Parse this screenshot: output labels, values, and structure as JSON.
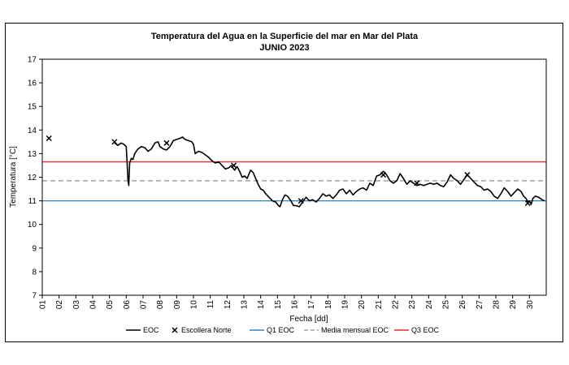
{
  "chart_data": {
    "type": "line",
    "title": "Temperatura del Agua en la Superficie del mar en Mar del Plata",
    "subtitle": "JUNIO 2023",
    "xlabel": "Fecha [dd]",
    "ylabel": "Temperatura [°C]",
    "ylim": [
      7,
      17
    ],
    "yticks": [
      "7",
      "8",
      "9",
      "10",
      "11",
      "12",
      "13",
      "14",
      "15",
      "16",
      "17"
    ],
    "xticks": [
      "01",
      "02",
      "03",
      "04",
      "05",
      "06",
      "07",
      "08",
      "09",
      "10",
      "11",
      "12",
      "13",
      "14",
      "15",
      "16",
      "17",
      "18",
      "19",
      "20",
      "21",
      "22",
      "23",
      "24",
      "25",
      "26",
      "27",
      "28",
      "29",
      "30"
    ],
    "xlim": [
      1,
      31
    ],
    "grid": false,
    "legend_position": "bottom",
    "series": [
      {
        "name": "EOC",
        "kind": "line",
        "color": "#000000",
        "points": [
          [
            5.3,
            13.45
          ],
          [
            5.5,
            13.35
          ],
          [
            5.7,
            13.45
          ],
          [
            5.85,
            13.4
          ],
          [
            6.0,
            13.3
          ],
          [
            6.05,
            12.6
          ],
          [
            6.1,
            11.9
          ],
          [
            6.15,
            11.65
          ],
          [
            6.2,
            12.6
          ],
          [
            6.3,
            12.8
          ],
          [
            6.4,
            12.75
          ],
          [
            6.5,
            13.0
          ],
          [
            6.7,
            13.2
          ],
          [
            6.9,
            13.3
          ],
          [
            7.1,
            13.25
          ],
          [
            7.3,
            13.1
          ],
          [
            7.5,
            13.2
          ],
          [
            7.7,
            13.45
          ],
          [
            7.9,
            13.5
          ],
          [
            8.0,
            13.3
          ],
          [
            8.2,
            13.2
          ],
          [
            8.4,
            13.15
          ],
          [
            8.6,
            13.3
          ],
          [
            8.8,
            13.55
          ],
          [
            9.0,
            13.6
          ],
          [
            9.2,
            13.65
          ],
          [
            9.35,
            13.7
          ],
          [
            9.5,
            13.6
          ],
          [
            9.7,
            13.55
          ],
          [
            9.9,
            13.5
          ],
          [
            10.0,
            13.4
          ],
          [
            10.1,
            13.0
          ],
          [
            10.3,
            13.1
          ],
          [
            10.5,
            13.05
          ],
          [
            10.7,
            12.95
          ],
          [
            10.9,
            12.85
          ],
          [
            11.1,
            12.7
          ],
          [
            11.3,
            12.6
          ],
          [
            11.5,
            12.65
          ],
          [
            11.7,
            12.5
          ],
          [
            11.9,
            12.35
          ],
          [
            12.1,
            12.4
          ],
          [
            12.25,
            12.5
          ],
          [
            12.45,
            12.3
          ],
          [
            12.6,
            12.45
          ],
          [
            12.75,
            12.25
          ],
          [
            12.9,
            12.0
          ],
          [
            13.05,
            12.05
          ],
          [
            13.2,
            11.95
          ],
          [
            13.4,
            12.3
          ],
          [
            13.55,
            12.2
          ],
          [
            13.7,
            11.95
          ],
          [
            13.85,
            11.7
          ],
          [
            14.0,
            11.5
          ],
          [
            14.15,
            11.45
          ],
          [
            14.3,
            11.3
          ],
          [
            14.5,
            11.15
          ],
          [
            14.7,
            11.0
          ],
          [
            14.9,
            10.95
          ],
          [
            15.05,
            10.8
          ],
          [
            15.15,
            10.75
          ],
          [
            15.3,
            11.05
          ],
          [
            15.45,
            11.25
          ],
          [
            15.6,
            11.2
          ],
          [
            15.8,
            11.0
          ],
          [
            15.95,
            10.8
          ],
          [
            16.1,
            10.8
          ],
          [
            16.3,
            10.75
          ],
          [
            16.5,
            10.95
          ],
          [
            16.7,
            11.15
          ],
          [
            16.9,
            11.0
          ],
          [
            17.1,
            11.05
          ],
          [
            17.3,
            10.95
          ],
          [
            17.5,
            11.1
          ],
          [
            17.7,
            11.3
          ],
          [
            17.9,
            11.2
          ],
          [
            18.1,
            11.25
          ],
          [
            18.3,
            11.1
          ],
          [
            18.5,
            11.25
          ],
          [
            18.7,
            11.45
          ],
          [
            18.9,
            11.5
          ],
          [
            19.1,
            11.3
          ],
          [
            19.3,
            11.45
          ],
          [
            19.5,
            11.25
          ],
          [
            19.7,
            11.4
          ],
          [
            19.9,
            11.5
          ],
          [
            20.1,
            11.55
          ],
          [
            20.3,
            11.45
          ],
          [
            20.5,
            11.75
          ],
          [
            20.7,
            11.65
          ],
          [
            20.9,
            12.05
          ],
          [
            21.1,
            12.1
          ],
          [
            21.3,
            12.25
          ],
          [
            21.5,
            12.1
          ],
          [
            21.7,
            11.85
          ],
          [
            21.9,
            11.75
          ],
          [
            22.1,
            11.85
          ],
          [
            22.3,
            12.15
          ],
          [
            22.5,
            11.95
          ],
          [
            22.7,
            11.7
          ],
          [
            22.9,
            11.85
          ],
          [
            23.1,
            11.75
          ],
          [
            23.3,
            11.65
          ],
          [
            23.5,
            11.7
          ],
          [
            23.7,
            11.65
          ],
          [
            23.9,
            11.7
          ],
          [
            24.1,
            11.75
          ],
          [
            24.3,
            11.7
          ],
          [
            24.5,
            11.75
          ],
          [
            24.7,
            11.65
          ],
          [
            24.9,
            11.6
          ],
          [
            25.1,
            11.8
          ],
          [
            25.3,
            12.1
          ],
          [
            25.5,
            11.95
          ],
          [
            25.7,
            11.85
          ],
          [
            25.9,
            11.7
          ],
          [
            26.1,
            11.9
          ],
          [
            26.3,
            12.1
          ],
          [
            26.5,
            11.95
          ],
          [
            26.7,
            11.8
          ],
          [
            26.9,
            11.65
          ],
          [
            27.1,
            11.6
          ],
          [
            27.3,
            11.45
          ],
          [
            27.5,
            11.5
          ],
          [
            27.7,
            11.4
          ],
          [
            27.9,
            11.2
          ],
          [
            28.1,
            11.1
          ],
          [
            28.3,
            11.3
          ],
          [
            28.5,
            11.55
          ],
          [
            28.7,
            11.4
          ],
          [
            28.9,
            11.2
          ],
          [
            29.1,
            11.35
          ],
          [
            29.3,
            11.5
          ],
          [
            29.5,
            11.4
          ],
          [
            29.65,
            11.2
          ],
          [
            29.8,
            11.1
          ],
          [
            29.9,
            10.95
          ],
          [
            30.0,
            11.0
          ],
          [
            30.1,
            10.85
          ],
          [
            30.2,
            11.1
          ],
          [
            30.35,
            11.2
          ],
          [
            30.55,
            11.15
          ],
          [
            30.75,
            11.05
          ],
          [
            30.9,
            11.0
          ]
        ]
      },
      {
        "name": "Escollera Norte",
        "kind": "marker",
        "color": "#000000",
        "points": [
          [
            1.4,
            13.65
          ],
          [
            5.3,
            13.5
          ],
          [
            8.4,
            13.45
          ],
          [
            12.4,
            12.5
          ],
          [
            16.4,
            11.0
          ],
          [
            21.3,
            12.1
          ],
          [
            23.3,
            11.75
          ],
          [
            26.3,
            12.1
          ],
          [
            29.9,
            10.9
          ]
        ]
      },
      {
        "name": "Q1 EOC",
        "kind": "hline",
        "color": "#2E86C1",
        "value": 11.0
      },
      {
        "name": "Media mensual EOC",
        "kind": "hline-dashed",
        "color": "#A0A0A0",
        "value": 11.85
      },
      {
        "name": "Q3  EOC",
        "kind": "hline",
        "color": "#E03030",
        "value": 12.65
      }
    ]
  }
}
